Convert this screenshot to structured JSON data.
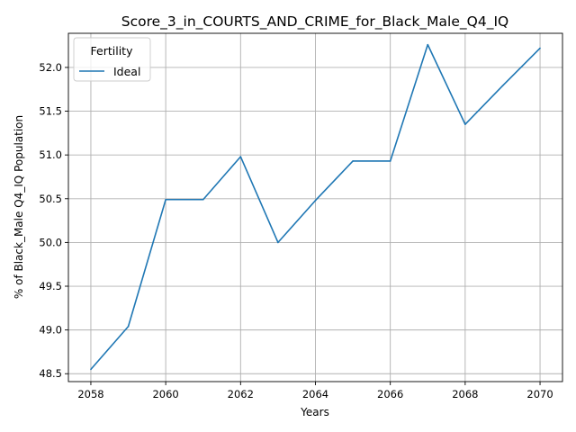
{
  "chart_data": {
    "type": "line",
    "title": "Score_3_in_COURTS_AND_CRIME_for_Black_Male_Q4_IQ",
    "xlabel": "Years",
    "ylabel": "% of Black_Male Q4_IQ Population",
    "xlim": [
      2057.4,
      2070.6
    ],
    "ylim": [
      48.41,
      52.39
    ],
    "xticks": [
      2058,
      2060,
      2062,
      2064,
      2066,
      2068,
      2070
    ],
    "yticks": [
      48.5,
      49.0,
      49.5,
      50.0,
      50.5,
      51.0,
      51.5,
      52.0
    ],
    "grid": true,
    "legend": {
      "title": "Fertility",
      "placement": "top-left"
    },
    "series": [
      {
        "name": "Ideal",
        "color": "#1f77b4",
        "x": [
          2058,
          2059,
          2060,
          2061,
          2062,
          2063,
          2064,
          2065,
          2066,
          2067,
          2068,
          2069,
          2070
        ],
        "y": [
          48.55,
          49.04,
          50.49,
          50.49,
          50.98,
          50.0,
          50.48,
          50.93,
          50.93,
          52.26,
          51.35,
          51.79,
          52.22
        ]
      }
    ]
  }
}
